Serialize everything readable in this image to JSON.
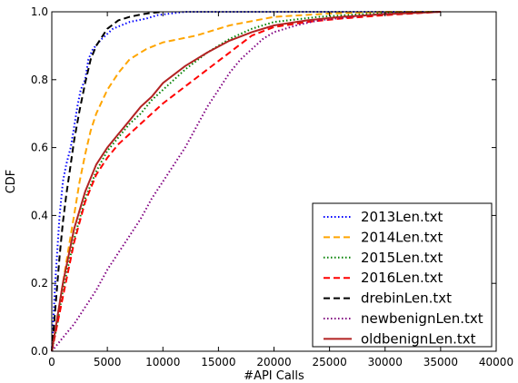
{
  "chart_data": {
    "type": "line",
    "title": "",
    "xlabel": "#API Calls",
    "ylabel": "CDF",
    "xlim": [
      0,
      40000
    ],
    "ylim": [
      0.0,
      1.0
    ],
    "x_ticks": [
      0,
      5000,
      10000,
      15000,
      20000,
      25000,
      30000,
      35000,
      40000
    ],
    "y_ticks": [
      0.0,
      0.2,
      0.4,
      0.6,
      0.8,
      1.0
    ],
    "x_tick_labels": [
      "0",
      "5000",
      "10000",
      "15000",
      "20000",
      "25000",
      "30000",
      "35000",
      "40000"
    ],
    "y_tick_labels": [
      "0.0",
      "0.2",
      "0.4",
      "0.6",
      "0.8",
      "1.0"
    ],
    "grid": false,
    "legend_position": "bottom-right",
    "series": [
      {
        "name": "2013Len.txt",
        "color": "#0000ff",
        "dash": "dotted",
        "x": [
          0,
          300,
          700,
          1000,
          1300,
          1700,
          2000,
          2300,
          2600,
          3000,
          3300,
          3700,
          4500,
          5500,
          7000,
          8500,
          9500,
          12000,
          35000
        ],
        "y": [
          0.0,
          0.2,
          0.4,
          0.5,
          0.55,
          0.6,
          0.66,
          0.72,
          0.77,
          0.8,
          0.86,
          0.89,
          0.92,
          0.95,
          0.97,
          0.98,
          0.99,
          1.0,
          1.0
        ]
      },
      {
        "name": "2014Len.txt",
        "color": "#ffa500",
        "dash": "dashed",
        "x": [
          0,
          500,
          1000,
          1500,
          2000,
          2500,
          3000,
          3500,
          4000,
          5000,
          6000,
          7000,
          8500,
          10000,
          13000,
          16000,
          20000,
          25000,
          30000,
          35000
        ],
        "y": [
          0.0,
          0.1,
          0.2,
          0.3,
          0.4,
          0.5,
          0.58,
          0.65,
          0.7,
          0.77,
          0.82,
          0.86,
          0.89,
          0.91,
          0.93,
          0.96,
          0.985,
          0.995,
          1.0,
          1.0
        ]
      },
      {
        "name": "2015Len.txt",
        "color": "#008000",
        "dash": "dotted",
        "x": [
          0,
          500,
          1000,
          2000,
          3000,
          4000,
          5000,
          6000,
          7000,
          8000,
          9000,
          10000,
          12000,
          14000,
          16000,
          18000,
          20000,
          24000,
          28000,
          32000,
          35000
        ],
        "y": [
          0.0,
          0.08,
          0.18,
          0.33,
          0.45,
          0.53,
          0.59,
          0.63,
          0.67,
          0.7,
          0.74,
          0.77,
          0.83,
          0.88,
          0.92,
          0.95,
          0.97,
          0.985,
          0.993,
          0.998,
          1.0
        ]
      },
      {
        "name": "2016Len.txt",
        "color": "#ff0000",
        "dash": "dashed",
        "x": [
          0,
          500,
          1000,
          2000,
          3000,
          4000,
          5000,
          6000,
          7000,
          8000,
          9000,
          10000,
          12000,
          14000,
          16000,
          18000,
          20000,
          23000,
          26000,
          30000,
          35000
        ],
        "y": [
          0.0,
          0.08,
          0.16,
          0.32,
          0.44,
          0.52,
          0.57,
          0.61,
          0.64,
          0.67,
          0.7,
          0.73,
          0.78,
          0.83,
          0.88,
          0.93,
          0.955,
          0.97,
          0.98,
          0.99,
          1.0
        ]
      },
      {
        "name": "drebinLen.txt",
        "color": "#000000",
        "dash": "dashed",
        "x": [
          0,
          300,
          700,
          1000,
          1300,
          1700,
          2000,
          2500,
          3000,
          3500,
          4000,
          5000,
          6000,
          7000,
          8000,
          9000,
          10000
        ],
        "y": [
          0.0,
          0.12,
          0.28,
          0.38,
          0.46,
          0.55,
          0.62,
          0.71,
          0.79,
          0.86,
          0.9,
          0.95,
          0.975,
          0.985,
          0.992,
          0.997,
          1.0
        ]
      },
      {
        "name": "newbenignLen.txt",
        "color": "#800080",
        "dash": "dotted",
        "x": [
          0,
          1000,
          2000,
          3000,
          4000,
          5000,
          6000,
          7000,
          8000,
          9000,
          10000,
          11000,
          12000,
          13000,
          14000,
          15000,
          16000,
          17000,
          18000,
          19000,
          20000,
          22000,
          24000,
          27000,
          30000,
          35000
        ],
        "y": [
          0.0,
          0.04,
          0.08,
          0.13,
          0.18,
          0.24,
          0.29,
          0.34,
          0.39,
          0.45,
          0.5,
          0.55,
          0.6,
          0.66,
          0.72,
          0.77,
          0.82,
          0.86,
          0.89,
          0.92,
          0.94,
          0.96,
          0.975,
          0.985,
          0.995,
          1.0
        ]
      },
      {
        "name": "oldbenignLen.txt",
        "color": "#b22222",
        "dash": "solid",
        "x": [
          0,
          500,
          1000,
          2000,
          3000,
          4000,
          5000,
          6000,
          7000,
          8000,
          9000,
          10000,
          12000,
          14000,
          16000,
          18000,
          20000,
          23000,
          26000,
          30000,
          35000
        ],
        "y": [
          0.0,
          0.1,
          0.2,
          0.36,
          0.47,
          0.55,
          0.6,
          0.64,
          0.68,
          0.72,
          0.75,
          0.79,
          0.84,
          0.88,
          0.915,
          0.94,
          0.96,
          0.975,
          0.985,
          0.993,
          1.0
        ]
      }
    ]
  }
}
